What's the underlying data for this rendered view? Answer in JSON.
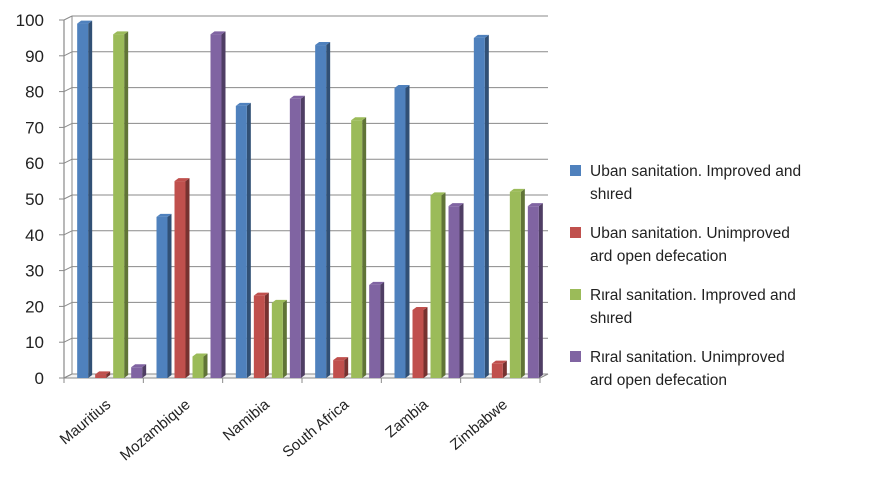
{
  "chart_data": {
    "type": "bar",
    "categories": [
      "Mauritius",
      "Mozambique",
      "Namibia",
      "South Africa",
      "Zambia",
      "Zimbabwe"
    ],
    "series": [
      {
        "name": "Uban sanitation. Improved and shared",
        "color": "#4f81bd",
        "values": [
          99,
          45,
          76,
          93,
          81,
          95
        ]
      },
      {
        "name": "Uban sanitation. Unimproved ard open defecation",
        "color": "#c0504d",
        "values": [
          1,
          55,
          23,
          5,
          19,
          4
        ]
      },
      {
        "name": "Rιral sanitation. Improved and shared",
        "color": "#9bbb59",
        "values": [
          96,
          6,
          21,
          72,
          51,
          52
        ]
      },
      {
        "name": "Rιral sanitation. Unimproved ard open defecation",
        "color": "#8064a2",
        "values": [
          3,
          96,
          78,
          26,
          48,
          48
        ]
      }
    ],
    "yticks": [
      "0",
      "10",
      "20",
      "30",
      "40",
      "50",
      "60",
      "70",
      "80",
      "90",
      "100"
    ],
    "ylim": [
      0,
      100
    ],
    "grid": true,
    "legend_position": "right",
    "title": "",
    "xlabel": "",
    "ylabel": ""
  },
  "legend": {
    "items": [
      {
        "line1": "Uban sanitation. Improved and",
        "line2": "shιred"
      },
      {
        "line1": "Uban sanitation. Unimproved",
        "line2": "ard open defecation"
      },
      {
        "line1": "Rιral sanitation. Improved and",
        "line2": "shιred"
      },
      {
        "line1": "Rιral sanitation. Unimproved",
        "line2": "ard open defecation"
      }
    ]
  }
}
